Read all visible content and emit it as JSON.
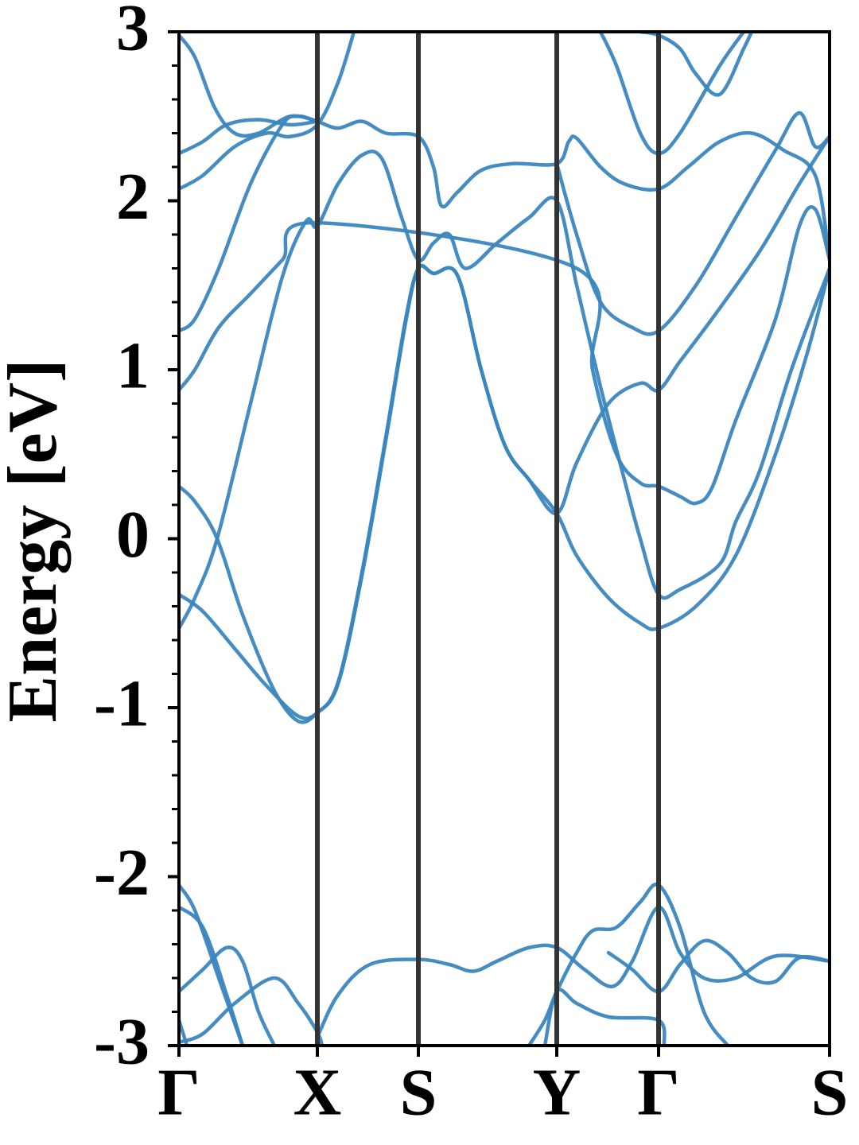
{
  "chart_data": {
    "type": "line",
    "ylabel": "Energy [eV]",
    "color": "#3a86bf",
    "xlim": [
      0,
      8.18
    ],
    "xticks": [
      {
        "value": 0,
        "label": "Γ"
      },
      {
        "value": 1.74,
        "label": "X"
      },
      {
        "value": 3.01,
        "label": "S"
      },
      {
        "value": 4.75,
        "label": "Y"
      },
      {
        "value": 6.03,
        "label": "Γ"
      },
      {
        "value": 8.18,
        "label": "S"
      }
    ],
    "xgrid": true,
    "ylim": [
      -3,
      3
    ],
    "yticks": [
      -3,
      -2,
      -1,
      0,
      1,
      2,
      3
    ],
    "yminorticks": [
      -2.8,
      -2.6,
      -2.4,
      -2.2,
      -1.8,
      -1.6,
      -1.4,
      -1.2,
      -0.8,
      -0.6,
      -0.4,
      -0.2,
      0.2,
      0.4,
      0.6,
      0.8,
      1.2,
      1.4,
      1.6,
      1.8,
      2.2,
      2.4,
      2.6,
      2.8
    ],
    "series": [
      {
        "x": [
          0,
          0.2,
          0.48,
          0.9,
          1.3,
          1.6,
          1.74,
          2.0,
          2.3,
          2.55,
          2.8,
          3.01,
          3.2,
          3.4,
          3.6,
          4.0,
          4.4,
          4.75,
          5.0,
          5.3,
          5.6,
          5.8,
          6.03,
          6.3,
          6.8,
          7.0,
          7.3,
          7.7,
          8.18
        ],
        "values": [
          -0.53,
          -0.35,
          0.0,
          0.8,
          1.55,
          1.88,
          1.85,
          2.1,
          2.27,
          2.25,
          1.9,
          1.65,
          1.75,
          1.8,
          1.6,
          1.75,
          1.9,
          2.0,
          1.5,
          0.9,
          0.35,
          0.0,
          -0.33,
          -0.3,
          -0.15,
          0.1,
          0.4,
          1.0,
          1.6
        ]
      },
      {
        "x": [
          0,
          0.3,
          0.7,
          1.1,
          1.5,
          1.74,
          2.0,
          2.3,
          2.6,
          2.85,
          3.01,
          3.2,
          3.5,
          3.8,
          4.1,
          4.4,
          4.75,
          5.0,
          5.4,
          5.8,
          6.03,
          6.3,
          6.7,
          7.3,
          7.8,
          8.18
        ],
        "values": [
          -0.33,
          -0.43,
          -0.65,
          -0.87,
          -1.05,
          -1.03,
          -0.85,
          -0.2,
          0.6,
          1.3,
          1.6,
          1.57,
          1.56,
          1.0,
          0.55,
          0.35,
          0.15,
          0.45,
          0.8,
          0.92,
          0.88,
          1.05,
          1.3,
          1.7,
          2.1,
          2.38
        ]
      },
      {
        "x": [
          0,
          0.2,
          0.48,
          0.8,
          1.2,
          1.5,
          1.74,
          2.0,
          2.3,
          2.6,
          2.85,
          3.01,
          3.2,
          3.5,
          3.8,
          4.1,
          4.4,
          4.75,
          5.0,
          5.4,
          5.8,
          6.03,
          6.5,
          7.0,
          7.5,
          7.9,
          8.18
        ],
        "values": [
          0.31,
          0.22,
          0.0,
          -0.45,
          -0.9,
          -1.08,
          -1.03,
          -0.86,
          -0.22,
          0.58,
          1.28,
          1.6,
          1.57,
          1.56,
          1.0,
          0.55,
          0.35,
          0.15,
          -0.1,
          -0.35,
          -0.5,
          -0.53,
          -0.4,
          -0.1,
          0.5,
          1.1,
          1.6
        ]
      },
      {
        "x": [
          0,
          0.2,
          0.5,
          0.9,
          1.3,
          1.74,
          5.0,
          5.2,
          5.5,
          5.8,
          6.03,
          6.3,
          6.5,
          6.7,
          7.0,
          7.5,
          7.8,
          8.0,
          8.18
        ],
        "values": [
          0.88,
          1.0,
          1.25,
          1.45,
          1.65,
          1.87,
          1.6,
          1.0,
          0.5,
          0.33,
          0.31,
          0.25,
          0.21,
          0.3,
          0.7,
          1.3,
          1.85,
          1.95,
          1.65
        ]
      },
      {
        "x": [
          0,
          0.2,
          0.5,
          0.9,
          1.3,
          1.5,
          1.74,
          2.0,
          2.3,
          2.6,
          3.01,
          3.2,
          3.3,
          3.5,
          3.8,
          4.2,
          4.75,
          4.9,
          5.0,
          5.3,
          5.6,
          6.03,
          6.4,
          6.8,
          7.2,
          7.6,
          8.0,
          8.18
        ],
        "values": [
          1.23,
          1.3,
          1.6,
          2.1,
          2.45,
          2.5,
          2.47,
          2.43,
          2.47,
          2.4,
          2.38,
          2.2,
          1.97,
          2.05,
          2.18,
          2.22,
          2.22,
          2.35,
          2.37,
          2.2,
          2.1,
          2.07,
          2.2,
          2.35,
          2.4,
          2.3,
          2.15,
          1.65
        ]
      },
      {
        "x": [
          0,
          0.3,
          0.7,
          1.1,
          1.4,
          1.74,
          2.0,
          2.2
        ],
        "values": [
          2.07,
          2.15,
          2.32,
          2.4,
          2.38,
          2.45,
          2.7,
          3.0
        ]
      },
      {
        "x": [
          0,
          0.3,
          0.6,
          1.0,
          1.4,
          1.74
        ],
        "values": [
          2.28,
          2.35,
          2.45,
          2.48,
          2.45,
          2.47
        ]
      },
      {
        "x": [
          0,
          0.2,
          0.45,
          0.7,
          1.0,
          1.4,
          1.74
        ],
        "values": [
          2.98,
          2.85,
          2.55,
          2.4,
          2.4,
          2.5,
          2.47
        ]
      },
      {
        "x": [
          4.75,
          5.0,
          5.3,
          5.7,
          6.03,
          6.5,
          7.0,
          7.5,
          7.8,
          8.0,
          8.18
        ],
        "values": [
          2.22,
          1.8,
          1.4,
          1.25,
          1.23,
          1.5,
          1.9,
          2.3,
          2.52,
          2.32,
          2.38
        ]
      },
      {
        "x": [
          5.3,
          5.5,
          5.8,
          6.03,
          6.3,
          6.8,
          7.1
        ],
        "values": [
          3.0,
          2.8,
          2.4,
          2.28,
          2.4,
          2.8,
          3.0
        ]
      },
      {
        "x": [
          5.8,
          6.03,
          6.3,
          6.5,
          6.8,
          7.1,
          7.2
        ],
        "values": [
          3.0,
          2.98,
          2.9,
          2.75,
          2.63,
          2.9,
          3.0
        ]
      },
      {
        "x": [
          0,
          0.2,
          0.5,
          0.8
        ],
        "values": [
          -2.05,
          -2.2,
          -2.6,
          -3.0
        ]
      },
      {
        "x": [
          0,
          0.3,
          0.6,
          0.8
        ],
        "values": [
          -2.18,
          -2.3,
          -2.7,
          -3.0
        ]
      },
      {
        "x": [
          0,
          0.3,
          0.6,
          0.8,
          1.0,
          1.2
        ],
        "values": [
          -2.68,
          -2.55,
          -2.42,
          -2.5,
          -2.8,
          -3.0
        ]
      },
      {
        "x": [
          0,
          0.1
        ],
        "values": [
          -2.85,
          -3.0
        ]
      },
      {
        "x": [
          0,
          0.3,
          0.7,
          1.2,
          1.5,
          1.74,
          1.8
        ],
        "values": [
          -2.98,
          -2.93,
          -2.75,
          -2.6,
          -2.75,
          -2.92,
          -3.0
        ]
      },
      {
        "x": [
          1.74,
          2.0,
          2.4,
          3.01,
          3.4,
          3.7,
          4.0,
          4.4,
          4.75,
          5.1,
          5.45,
          5.7,
          6.03,
          6.3,
          6.6,
          7.0,
          7.5,
          8.18
        ],
        "values": [
          -2.95,
          -2.7,
          -2.52,
          -2.49,
          -2.52,
          -2.56,
          -2.5,
          -2.42,
          -2.42,
          -2.55,
          -2.65,
          -2.5,
          -2.18,
          -2.45,
          -2.6,
          -2.6,
          -2.47,
          -2.5
        ]
      },
      {
        "x": [
          4.4,
          4.6,
          4.75,
          5.0,
          5.2,
          5.5,
          5.8,
          6.03,
          6.3,
          6.6,
          6.9
        ],
        "values": [
          -3.0,
          -2.85,
          -2.68,
          -2.45,
          -2.32,
          -2.3,
          -2.15,
          -2.05,
          -2.3,
          -2.8,
          -3.0
        ]
      },
      {
        "x": [
          4.6,
          4.75,
          5.0,
          5.4,
          6.03,
          6.1
        ],
        "values": [
          -3.0,
          -2.68,
          -2.75,
          -2.83,
          -2.85,
          -3.0
        ]
      },
      {
        "x": [
          5.4,
          5.7,
          6.03,
          6.3,
          6.6,
          6.9,
          7.2,
          7.5,
          7.8,
          8.18
        ],
        "values": [
          -2.45,
          -2.55,
          -2.68,
          -2.52,
          -2.38,
          -2.45,
          -2.6,
          -2.62,
          -2.48,
          -2.5
        ]
      }
    ]
  }
}
